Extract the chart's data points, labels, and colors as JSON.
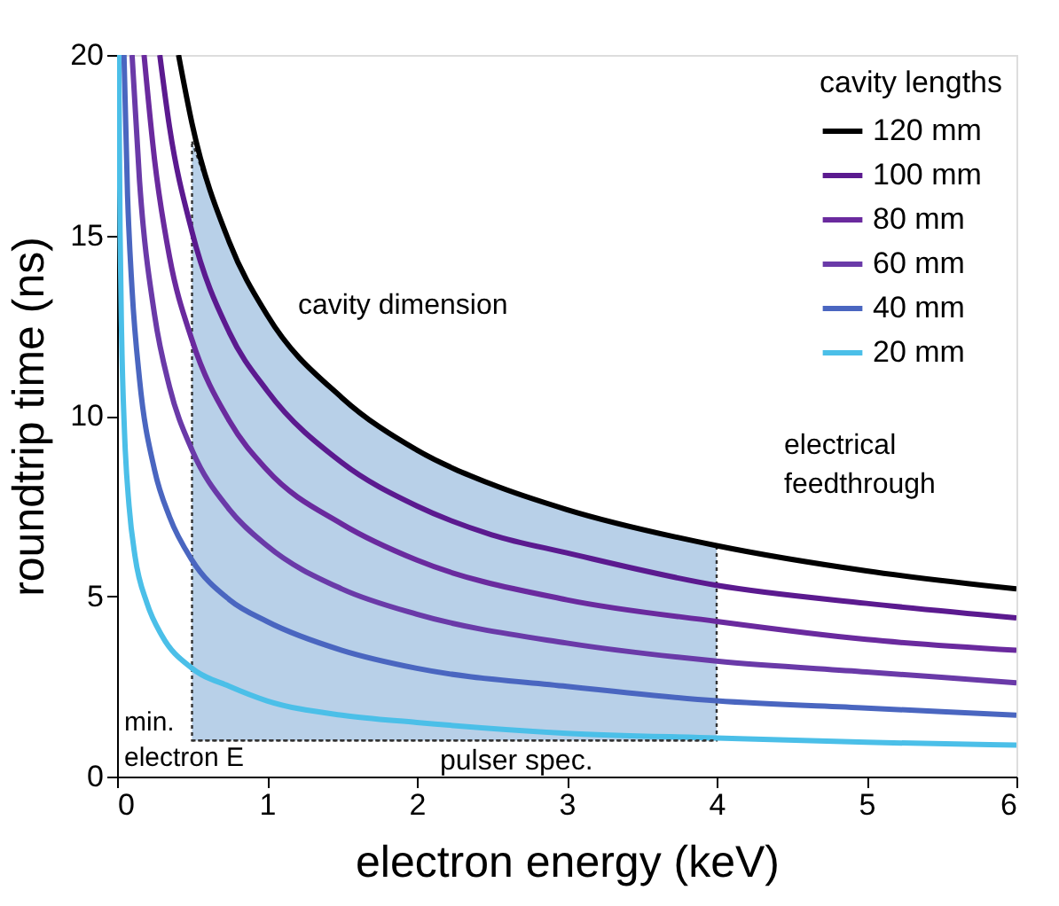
{
  "chart_data": {
    "type": "line",
    "xlabel": "electron energy (keV)",
    "ylabel": "roundtrip time (ns)",
    "legend_title": "cavity lengths",
    "legend": "top right",
    "xlim": [
      0,
      6
    ],
    "xticks": [
      0,
      1,
      2,
      3,
      4,
      5,
      6
    ],
    "ylim": [
      0,
      20
    ],
    "yticks": [
      0,
      5,
      10,
      15,
      20
    ],
    "series": [
      {
        "type": "area",
        "color": "#b8d0e8",
        "x": [
          0.5,
          0.75,
          1,
          1.5,
          2,
          2.5,
          3,
          4
        ],
        "values": [
          17.6,
          14.8,
          12.8,
          10.5,
          9.05,
          8.1,
          7.4,
          6.4
        ]
      },
      {
        "name": "120 mm",
        "color": "#000000",
        "x": [
          0.41,
          0.5,
          0.75,
          1,
          1.5,
          2,
          2.5,
          3,
          4,
          5,
          6
        ],
        "values": [
          20,
          18.1,
          14.8,
          12.8,
          10.5,
          9.05,
          8.1,
          7.4,
          6.4,
          5.7,
          5.2
        ]
      },
      {
        "name": "100 mm",
        "color": "#5b1a8f",
        "x": [
          0.285,
          0.35,
          0.5,
          0.75,
          1,
          1.5,
          2,
          2.5,
          3,
          4,
          5,
          6
        ],
        "values": [
          20,
          18.0,
          15.1,
          12.3,
          10.7,
          8.7,
          7.5,
          6.7,
          6.2,
          5.3,
          4.8,
          4.4
        ]
      },
      {
        "name": "80 mm",
        "color": "#6a2a9e",
        "x": [
          0.18,
          0.25,
          0.35,
          0.5,
          0.75,
          1,
          1.5,
          2,
          3,
          4,
          5,
          6
        ],
        "values": [
          20,
          17.1,
          14.4,
          12.1,
          9.85,
          8.5,
          7.0,
          6.0,
          4.9,
          4.3,
          3.8,
          3.5
        ]
      },
      {
        "name": "60 mm",
        "color": "#6a3aa8",
        "x": [
          0.1,
          0.15,
          0.25,
          0.35,
          0.5,
          0.75,
          1,
          1.5,
          2,
          3,
          4,
          5,
          6
        ],
        "values": [
          20,
          16.5,
          12.8,
          10.8,
          9.05,
          7.4,
          6.4,
          5.2,
          4.5,
          3.7,
          3.2,
          2.9,
          2.6
        ]
      },
      {
        "name": "40 mm",
        "color": "#4a66c0",
        "x": [
          0.046,
          0.07,
          0.1,
          0.15,
          0.25,
          0.35,
          0.5,
          0.75,
          1,
          1.5,
          2,
          3,
          4,
          5,
          6
        ],
        "values": [
          20,
          16.1,
          13.5,
          11.0,
          8.5,
          7.2,
          6.0,
          4.9,
          4.3,
          3.5,
          3.0,
          2.5,
          2.1,
          1.9,
          1.7
        ]
      },
      {
        "name": "20 mm",
        "color": "#4bbfe8",
        "x": [
          0.011,
          0.02,
          0.03,
          0.05,
          0.08,
          0.12,
          0.2,
          0.3,
          0.5,
          0.75,
          1,
          1.5,
          2,
          3,
          4,
          5,
          6
        ],
        "values": [
          20,
          15.1,
          12.3,
          9.5,
          7.5,
          6.1,
          4.8,
          3.9,
          3.0,
          2.5,
          2.1,
          1.7,
          1.5,
          1.2,
          1.07,
          0.95,
          0.87
        ]
      }
    ],
    "annotations": [
      "cavity dimension",
      "electrical feedthrough",
      "min. electron E"
    ],
    "ref_lines": [
      {
        "axis": "y",
        "value": 1,
        "label": "pulser spec.",
        "line_style": "dotted"
      }
    ],
    "grid": false
  }
}
